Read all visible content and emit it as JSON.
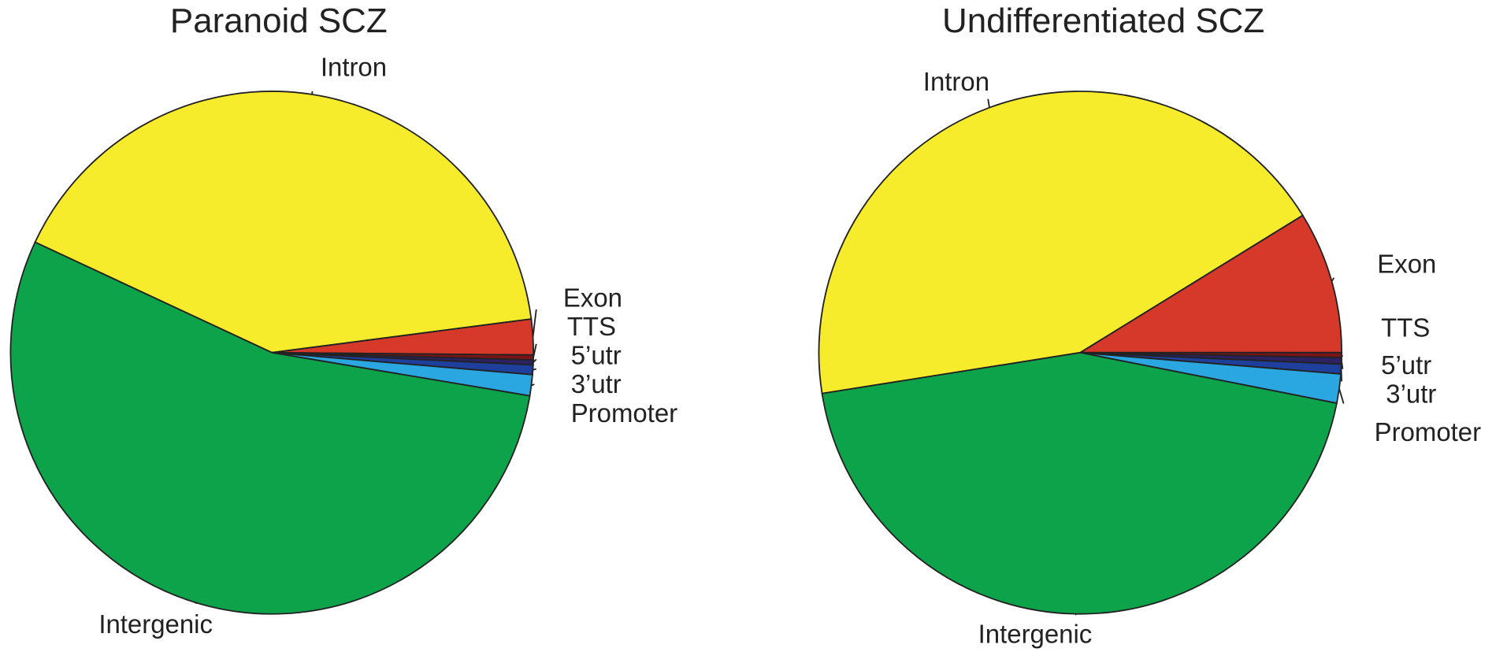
{
  "chart_data": [
    {
      "type": "pie",
      "title": "Paranoid SCZ",
      "categories": [
        "Intron",
        "Exon",
        "TTS",
        "5’utr",
        "3’utr",
        "Promoter",
        "Intergenic"
      ],
      "values": [
        41,
        2.2,
        0.3,
        0.3,
        0.6,
        1.3,
        54.3
      ],
      "colors": [
        "#f7ec2c",
        "#d6382a",
        "#7a1418",
        "#2b2163",
        "#1f3f9c",
        "#2aa7e1",
        "#0ca34b"
      ]
    },
    {
      "type": "pie",
      "title": "Undifferentiated SCZ",
      "categories": [
        "Intron",
        "Exon",
        "TTS",
        "5’utr",
        "3’utr",
        "Promoter",
        "Intergenic"
      ],
      "values": [
        43.7,
        8.8,
        0.3,
        0.4,
        0.6,
        1.8,
        44.4
      ],
      "colors": [
        "#f7ec2c",
        "#d6382a",
        "#7a1418",
        "#2b2163",
        "#1f3f9c",
        "#2aa7e1",
        "#0ca34b"
      ]
    }
  ]
}
